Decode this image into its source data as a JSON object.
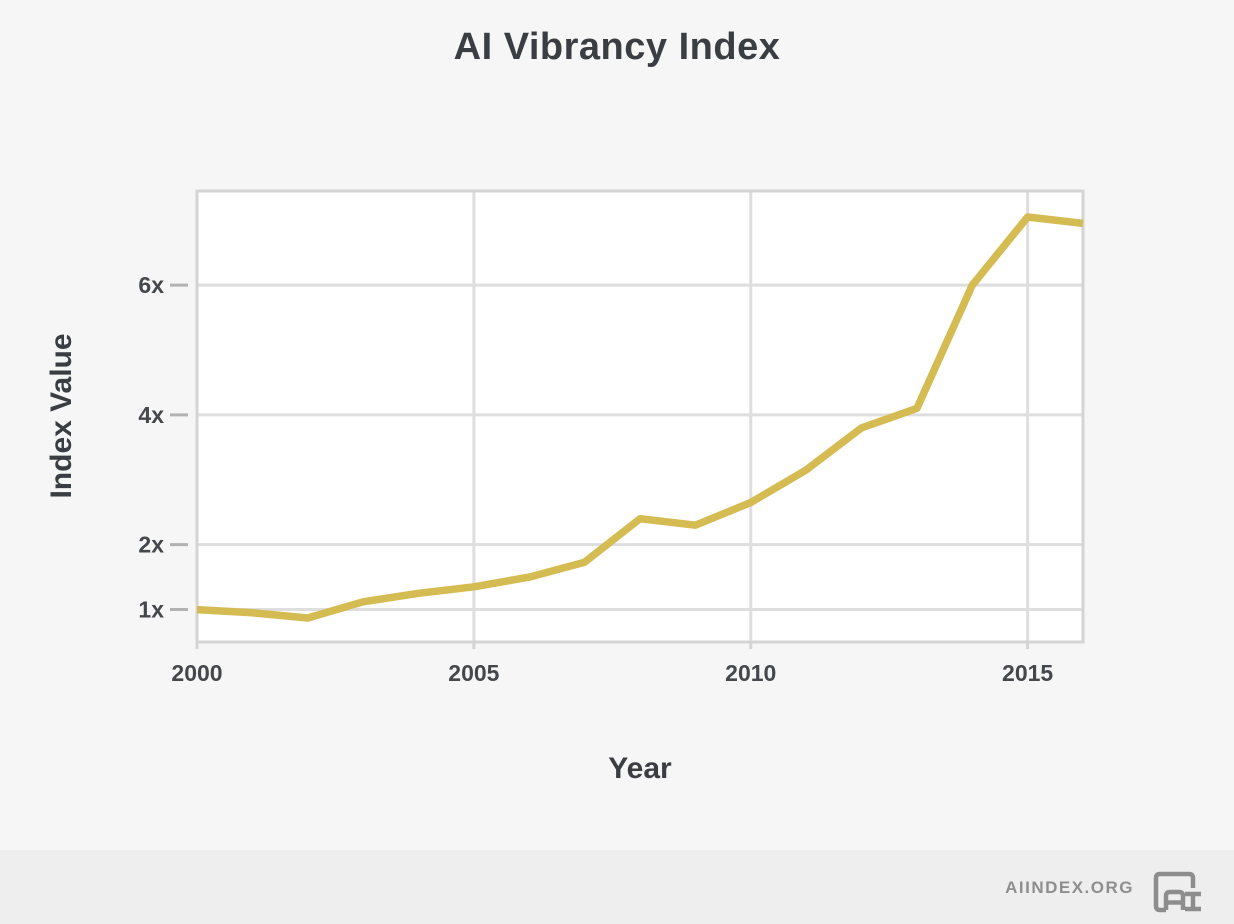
{
  "title": "AI Vibrancy Index",
  "colors": {
    "accent_line": "#d4bb52",
    "grid": "#dedede",
    "plot_border": "#d4d4d4",
    "axis_tick": "#b2b2b2",
    "text_dark": "#3a3d42",
    "text_tick": "#44484d",
    "muted": "#8e8e8e",
    "plot_bg": "#ffffff",
    "page_bg": "#f6f6f6",
    "footer_bg": "#eeeeee"
  },
  "chart_data": {
    "type": "line",
    "title": "AI Vibrancy Index",
    "xlabel": "Year",
    "ylabel": "Index Value",
    "x": [
      2000,
      2001,
      2002,
      2003,
      2004,
      2005,
      2006,
      2007,
      2008,
      2009,
      2010,
      2011,
      2012,
      2013,
      2014,
      2015,
      2016
    ],
    "series": [
      {
        "name": "AI Vibrancy Index",
        "values": [
          1.0,
          0.95,
          0.87,
          1.12,
          1.25,
          1.35,
          1.5,
          1.73,
          2.4,
          2.3,
          2.65,
          3.15,
          3.8,
          4.1,
          6.0,
          7.05,
          6.95
        ]
      }
    ],
    "xlim": [
      2000,
      2016
    ],
    "ylim": [
      0.5,
      7.45
    ],
    "x_ticks": [
      {
        "value": 2000,
        "label": "2000"
      },
      {
        "value": 2005,
        "label": "2005"
      },
      {
        "value": 2010,
        "label": "2010"
      },
      {
        "value": 2015,
        "label": "2015"
      }
    ],
    "y_ticks": [
      {
        "value": 1,
        "label": "1x"
      },
      {
        "value": 2,
        "label": "2x"
      },
      {
        "value": 4,
        "label": "4x"
      },
      {
        "value": 6,
        "label": "6x"
      }
    ],
    "grid": true,
    "legend": "none",
    "line_color": "#d4bb52",
    "line_width": 7.5
  },
  "footer": {
    "site_label": "AIINDEX.ORG",
    "logo": "ai-index-logo"
  }
}
